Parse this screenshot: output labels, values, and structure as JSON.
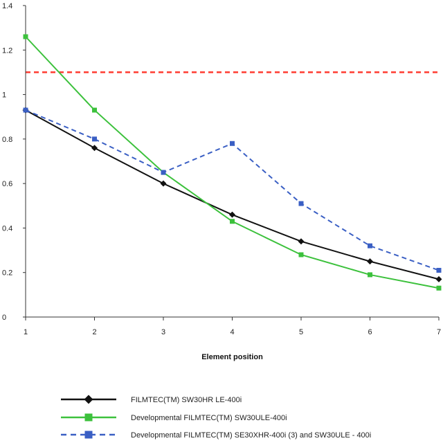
{
  "chart_data": {
    "type": "line",
    "title": "",
    "xlabel": "Element position",
    "ylabel": "",
    "x": [
      1,
      2,
      3,
      4,
      5,
      6,
      7
    ],
    "xlim": [
      1,
      7
    ],
    "ylim": [
      0,
      1.4
    ],
    "x_ticks": [
      "1",
      "2",
      "3",
      "4",
      "5",
      "6",
      "7"
    ],
    "y_ticks": [
      "0",
      "0.2",
      "0.4",
      "0.6",
      "0.8",
      "1",
      "1.2",
      "1.4"
    ],
    "y_tick_values": [
      0,
      0.2,
      0.4,
      0.6,
      0.8,
      1.0,
      1.2,
      1.4
    ],
    "grid": false,
    "legend_position": "bottom",
    "reference_line": {
      "y": 1.1,
      "color": "#ff3b30",
      "style": "dashed"
    },
    "series": [
      {
        "name": "FILMTEC(TM) SW30HR LE-400i",
        "values": [
          0.93,
          0.76,
          0.6,
          0.46,
          0.34,
          0.25,
          0.17
        ],
        "color": "#111111",
        "marker": "diamond",
        "style": "solid"
      },
      {
        "name": "Developmental FILMTEC(TM) SW30ULE-400i",
        "values": [
          1.26,
          0.93,
          0.65,
          0.43,
          0.28,
          0.19,
          0.13
        ],
        "color": "#3cc13c",
        "marker": "square",
        "style": "solid"
      },
      {
        "name": "Developmental FILMTEC(TM) SE30XHR-400i (3) and SW30ULE - 400i",
        "values": [
          0.93,
          0.8,
          0.65,
          0.78,
          0.51,
          0.32,
          0.21
        ],
        "color": "#3a5fc4",
        "marker": "square",
        "style": "dashed"
      }
    ]
  }
}
